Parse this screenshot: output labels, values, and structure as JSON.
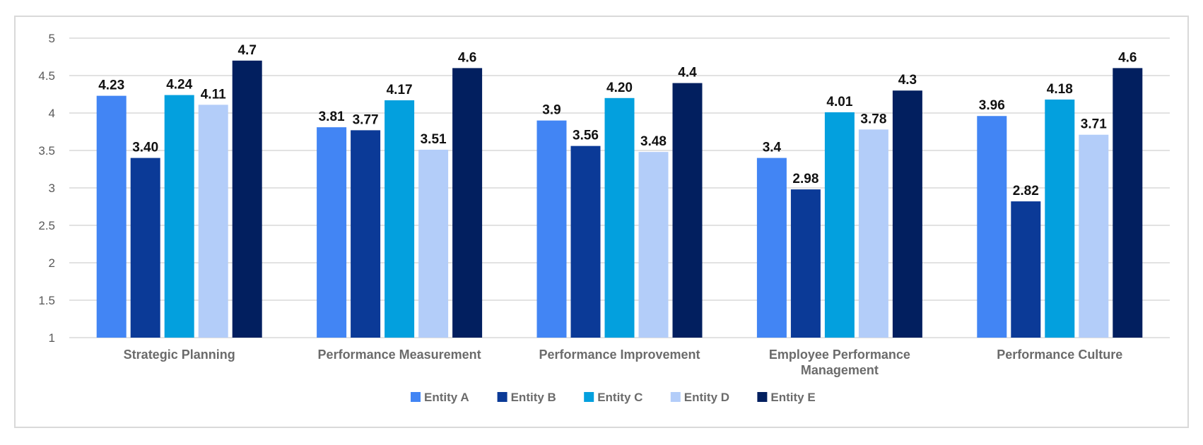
{
  "chart_data": {
    "type": "bar",
    "categories": [
      [
        "Strategic Planning"
      ],
      [
        "Performance Measurement"
      ],
      [
        "Performance Improvement"
      ],
      [
        "Employee Performance",
        "Management"
      ],
      [
        "Performance Culture"
      ]
    ],
    "series": [
      {
        "name": "Entity A",
        "color": "#4285f4",
        "values": [
          4.23,
          3.81,
          3.9,
          3.4,
          3.96
        ],
        "labels": [
          "4.23",
          "3.81",
          "3.9",
          "3.4",
          "3.96"
        ]
      },
      {
        "name": "Entity B",
        "color": "#0b3a97",
        "values": [
          3.4,
          3.77,
          3.56,
          2.98,
          2.82
        ],
        "labels": [
          "3.40",
          "3.77",
          "3.56",
          "2.98",
          "2.82"
        ]
      },
      {
        "name": "Entity C",
        "color": "#03a0de",
        "values": [
          4.24,
          4.17,
          4.2,
          4.01,
          4.18
        ],
        "labels": [
          "4.24",
          "4.17",
          "4.20",
          "4.01",
          "4.18"
        ]
      },
      {
        "name": "Entity D",
        "color": "#b3cdf9",
        "values": [
          4.11,
          3.51,
          3.48,
          3.78,
          3.71
        ],
        "labels": [
          "4.11",
          "3.51",
          "3.48",
          "3.78",
          "3.71"
        ]
      },
      {
        "name": "Entity E",
        "color": "#021f5f",
        "values": [
          4.7,
          4.6,
          4.4,
          4.3,
          4.6
        ],
        "labels": [
          "4.7",
          "4.6",
          "4.4",
          "4.3",
          "4.6"
        ]
      }
    ],
    "yticks": [
      "1",
      "1.5",
      "2",
      "2.5",
      "3",
      "3.5",
      "4",
      "4.5",
      "5"
    ],
    "ylim": [
      1,
      5
    ],
    "grid": true,
    "legend": "bottom",
    "title": "",
    "xlabel": "",
    "ylabel": ""
  }
}
